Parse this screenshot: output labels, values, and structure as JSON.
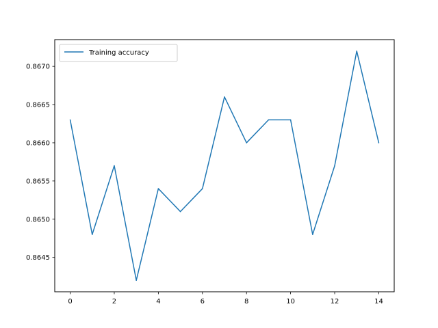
{
  "chart_data": {
    "type": "line",
    "title": "",
    "xlabel": "",
    "ylabel": "",
    "x": [
      0,
      1,
      2,
      3,
      4,
      5,
      6,
      7,
      8,
      9,
      10,
      11,
      12,
      13,
      14
    ],
    "series": [
      {
        "name": "Training accuracy",
        "color": "#1f77b4",
        "values": [
          0.8663,
          0.8648,
          0.8657,
          0.8642,
          0.8654,
          0.8651,
          0.8654,
          0.8666,
          0.866,
          0.8663,
          0.8663,
          0.8648,
          0.8657,
          0.8672,
          0.866
        ]
      }
    ],
    "xlim": [
      -0.7,
      14.7
    ],
    "ylim": [
      0.86405,
      0.86735
    ],
    "xticks": [
      0,
      2,
      4,
      6,
      8,
      10,
      12,
      14
    ],
    "xtick_labels": [
      "0",
      "2",
      "4",
      "6",
      "8",
      "10",
      "12",
      "14"
    ],
    "yticks": [
      0.8645,
      0.865,
      0.8655,
      0.866,
      0.8665,
      0.867
    ],
    "ytick_labels": [
      "0.8645",
      "0.8650",
      "0.8655",
      "0.8660",
      "0.8665",
      "0.8670"
    ],
    "grid": false,
    "legend_position": "top-left"
  }
}
